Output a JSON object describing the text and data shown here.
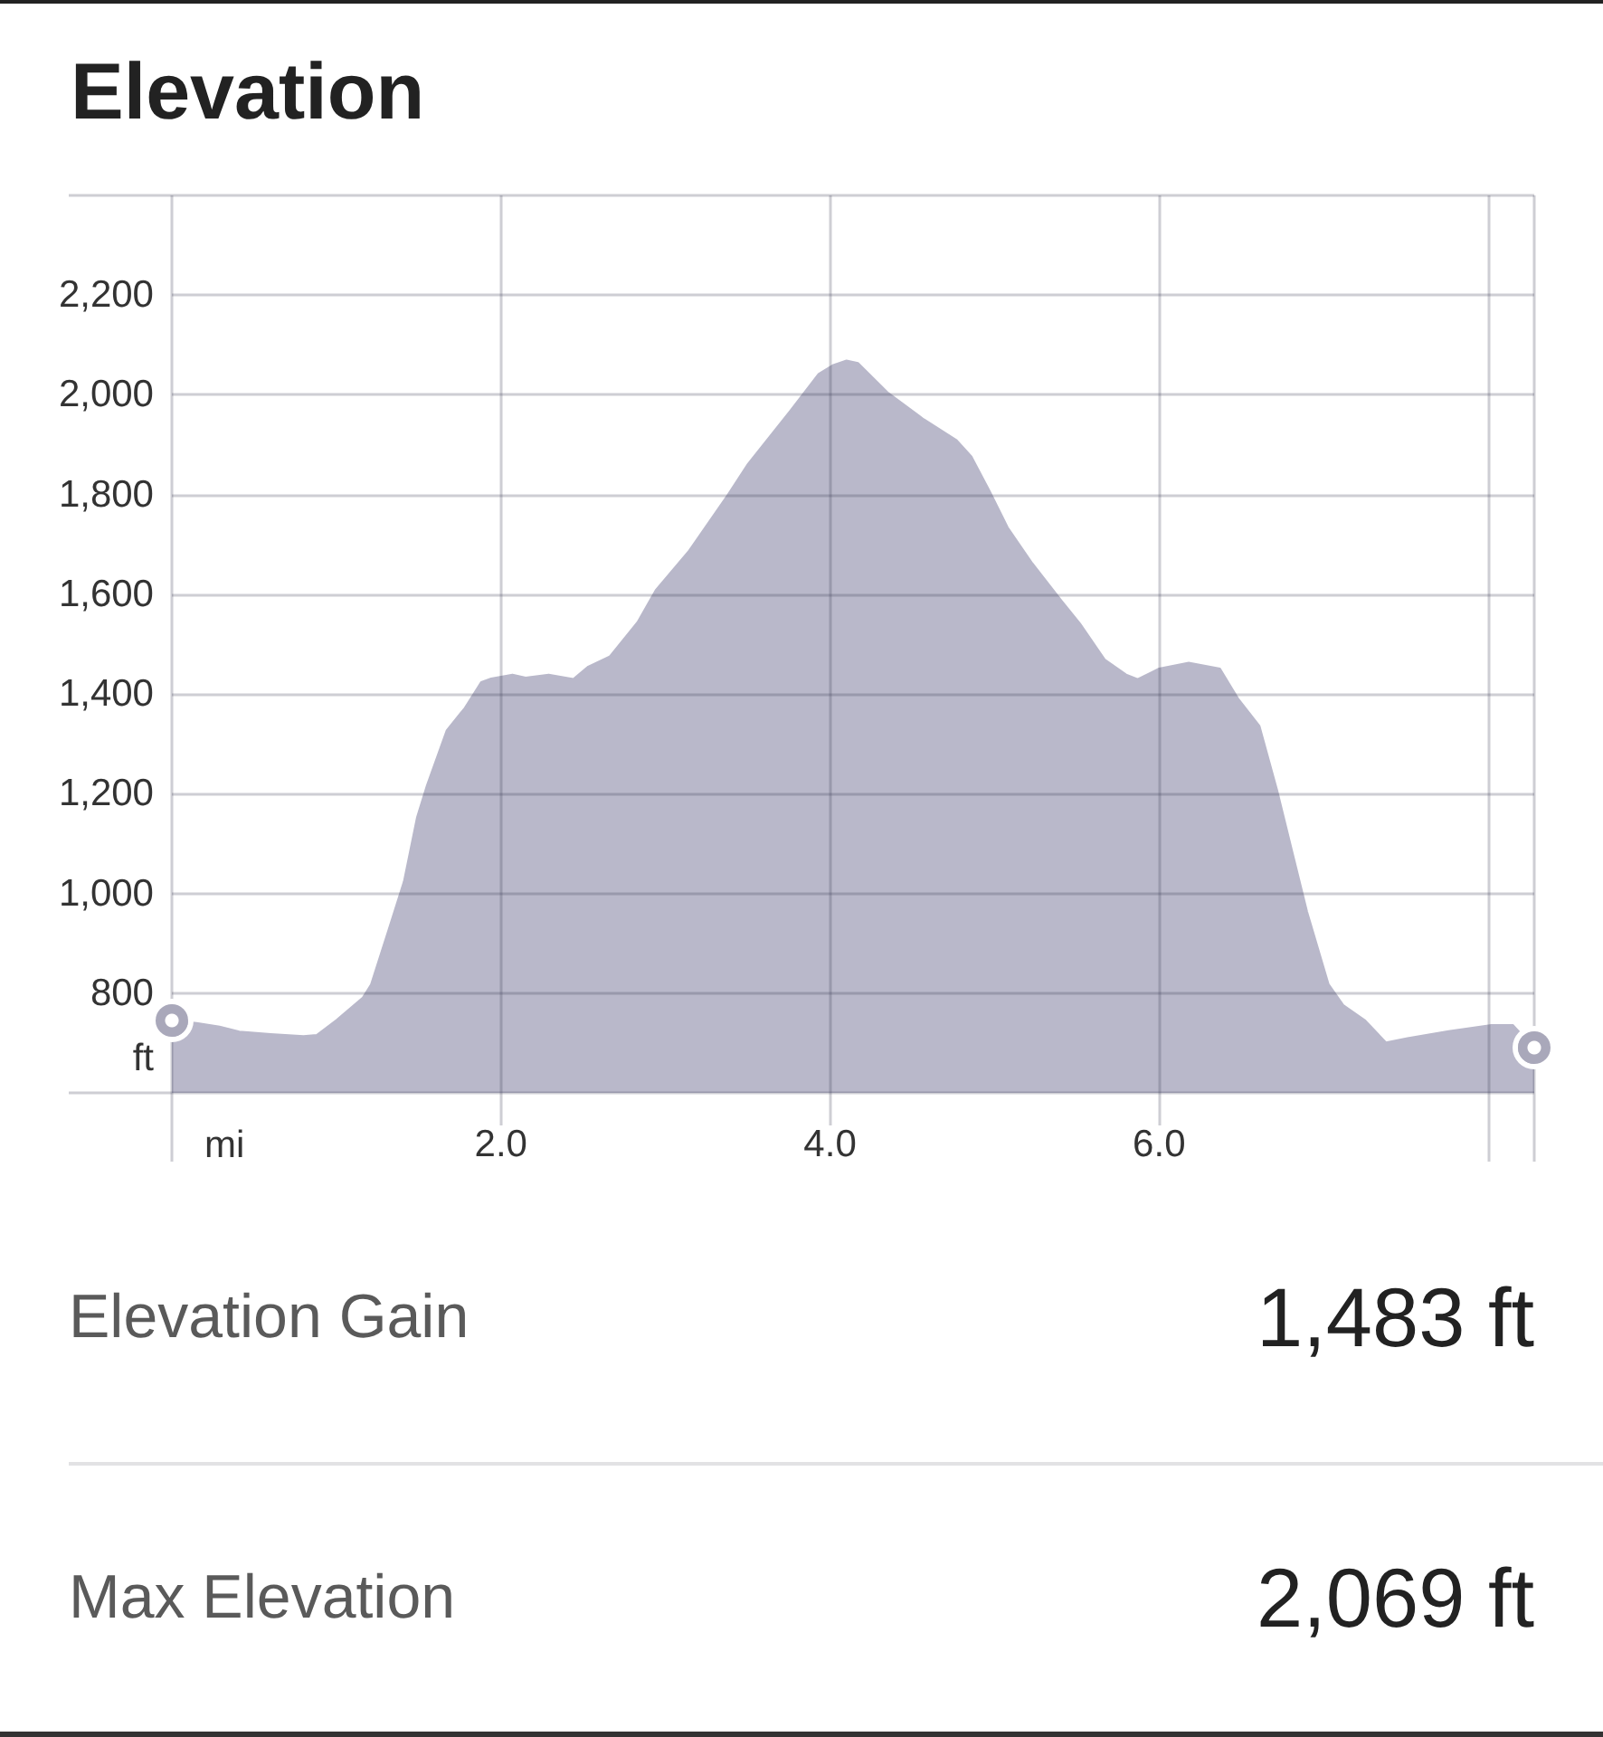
{
  "chart_data": {
    "type": "area",
    "title": "Elevation",
    "xlabel": "mi",
    "ylabel": "ft",
    "x": [
      0,
      0.15,
      0.29,
      0.41,
      0.6,
      0.8,
      0.88,
      1.0,
      1.16,
      1.21,
      1.31,
      1.41,
      1.49,
      1.55,
      1.67,
      1.78,
      1.88,
      1.94,
      2.07,
      2.15,
      2.29,
      2.44,
      2.53,
      2.66,
      2.83,
      2.94,
      3.14,
      3.38,
      3.5,
      3.76,
      3.93,
      4.02,
      4.1,
      4.17,
      4.35,
      4.57,
      4.77,
      4.86,
      4.97,
      5.08,
      5.23,
      5.4,
      5.52,
      5.67,
      5.8,
      5.87,
      6.0,
      6.18,
      6.37,
      6.48,
      6.61,
      6.72,
      6.81,
      6.9,
      7.03,
      7.12,
      7.25,
      7.38,
      7.51,
      7.76,
      8.02,
      8.15,
      8.28
    ],
    "values": [
      745,
      740,
      733,
      723,
      718,
      714,
      716,
      746,
      791,
      817,
      920,
      1024,
      1153,
      1217,
      1327,
      1372,
      1424,
      1431,
      1439,
      1433,
      1439,
      1430,
      1455,
      1475,
      1544,
      1608,
      1686,
      1800,
      1861,
      1969,
      2042,
      2060,
      2069,
      2064,
      2005,
      1951,
      1909,
      1876,
      1807,
      1734,
      1662,
      1590,
      1541,
      1469,
      1439,
      1430,
      1451,
      1463,
      1451,
      1391,
      1336,
      1204,
      1083,
      963,
      818,
      776,
      746,
      701,
      710,
      724,
      736,
      736,
      690
    ],
    "color": "#b9b8ca",
    "xlim": [
      0,
      8.28
    ],
    "ylim": [
      600,
      2400
    ],
    "xticks": [
      {
        "value": 0,
        "label": null
      },
      {
        "value": 2,
        "label": "2.0"
      },
      {
        "value": 4,
        "label": "4.0"
      },
      {
        "value": 6,
        "label": "6.0"
      },
      {
        "value": 8,
        "label": null
      }
    ],
    "yticks": [
      800,
      {
        "value": 1000,
        "label": "1,000"
      },
      {
        "value": 1200,
        "label": "1,200"
      },
      {
        "value": 1400,
        "label": "1,400"
      },
      {
        "value": 1600,
        "label": "1,600"
      },
      {
        "value": 1800,
        "label": "1,800"
      },
      {
        "value": 2000,
        "label": "2,000"
      },
      {
        "value": 2200,
        "label": "2,200"
      }
    ],
    "grid": true,
    "marker": "none",
    "annotations": [
      "Elevation Gain",
      "1,483 ft",
      "Max Elevation",
      "2,069 ft"
    ]
  }
}
